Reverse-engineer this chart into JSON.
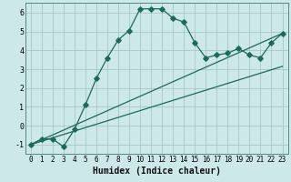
{
  "xlabel": "Humidex (Indice chaleur)",
  "bg_color": "#cce8e8",
  "grid_color": "#a8c8c8",
  "line_color": "#1a6b5a",
  "xlim": [
    -0.5,
    23.5
  ],
  "ylim": [
    -1.5,
    6.5
  ],
  "xticks": [
    0,
    1,
    2,
    3,
    4,
    5,
    6,
    7,
    8,
    9,
    10,
    11,
    12,
    13,
    14,
    15,
    16,
    17,
    18,
    19,
    20,
    21,
    22,
    23
  ],
  "yticks": [
    -1,
    0,
    1,
    2,
    3,
    4,
    5,
    6
  ],
  "line1_x": [
    0,
    1,
    2,
    3,
    4,
    5,
    6,
    7,
    8,
    9,
    10,
    11,
    12,
    13,
    14,
    15,
    16,
    17,
    18,
    19,
    20,
    21,
    22,
    23
  ],
  "line1_y": [
    -1.0,
    -0.7,
    -0.7,
    -1.1,
    -0.2,
    1.1,
    2.5,
    3.6,
    4.55,
    5.05,
    6.2,
    6.2,
    6.2,
    5.7,
    5.5,
    4.4,
    3.6,
    3.75,
    3.85,
    4.1,
    3.75,
    3.6,
    4.4,
    4.9
  ],
  "line2_x": [
    0,
    23
  ],
  "line2_y": [
    -1.0,
    3.15
  ],
  "line3_x": [
    0,
    23
  ],
  "line3_y": [
    -1.0,
    4.9
  ],
  "marker": "D",
  "markersize": 2.8,
  "xlabel_fontsize": 7,
  "tick_fontsize": 5.5
}
